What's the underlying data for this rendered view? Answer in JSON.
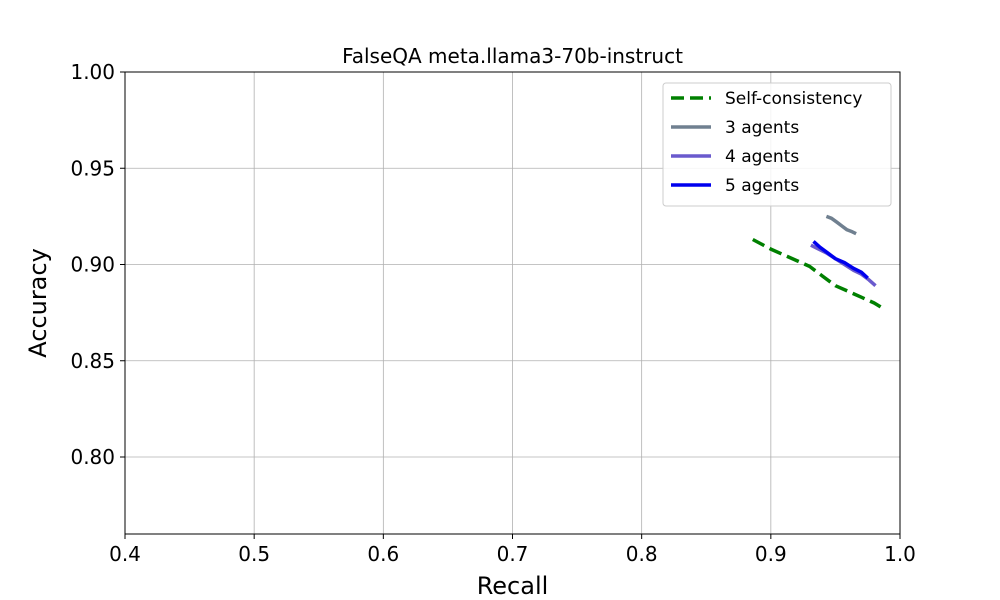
{
  "chart_data": {
    "type": "line",
    "title": "FalseQA meta.llama3-70b-instruct",
    "xlabel": "Recall",
    "ylabel": "Accuracy",
    "xlim": [
      0.4,
      1.0
    ],
    "ylim": [
      0.76,
      1.0
    ],
    "xticks": [
      "0.4",
      "0.5",
      "0.6",
      "0.7",
      "0.8",
      "0.9",
      "1.0"
    ],
    "yticks": [
      "0.80",
      "0.85",
      "0.90",
      "0.95",
      "1.00"
    ],
    "grid": true,
    "legend_position": "top-right",
    "series": [
      {
        "name": "Self-consistency",
        "color": "#008000",
        "dash": "dashed",
        "x": [
          0.886,
          0.9,
          0.92,
          0.93,
          0.94,
          0.95,
          0.96,
          0.97,
          0.98,
          0.985
        ],
        "y": [
          0.913,
          0.908,
          0.902,
          0.899,
          0.894,
          0.889,
          0.886,
          0.883,
          0.88,
          0.878
        ]
      },
      {
        "name": "3 agents",
        "color": "#708090",
        "dash": "solid",
        "x": [
          0.943,
          0.947,
          0.951,
          0.955,
          0.959,
          0.963,
          0.966
        ],
        "y": [
          0.925,
          0.924,
          0.922,
          0.92,
          0.918,
          0.917,
          0.916
        ]
      },
      {
        "name": "4 agents",
        "color": "#6a5acd",
        "dash": "solid",
        "x": [
          0.931,
          0.937,
          0.943,
          0.95,
          0.957,
          0.964,
          0.97,
          0.976,
          0.981
        ],
        "y": [
          0.91,
          0.908,
          0.906,
          0.903,
          0.9,
          0.897,
          0.895,
          0.892,
          0.889
        ]
      },
      {
        "name": "5 agents",
        "color": "#0000ee",
        "dash": "solid",
        "x": [
          0.933,
          0.938,
          0.944,
          0.95,
          0.957,
          0.964,
          0.97,
          0.975
        ],
        "y": [
          0.912,
          0.909,
          0.906,
          0.903,
          0.901,
          0.898,
          0.896,
          0.893
        ]
      }
    ]
  }
}
